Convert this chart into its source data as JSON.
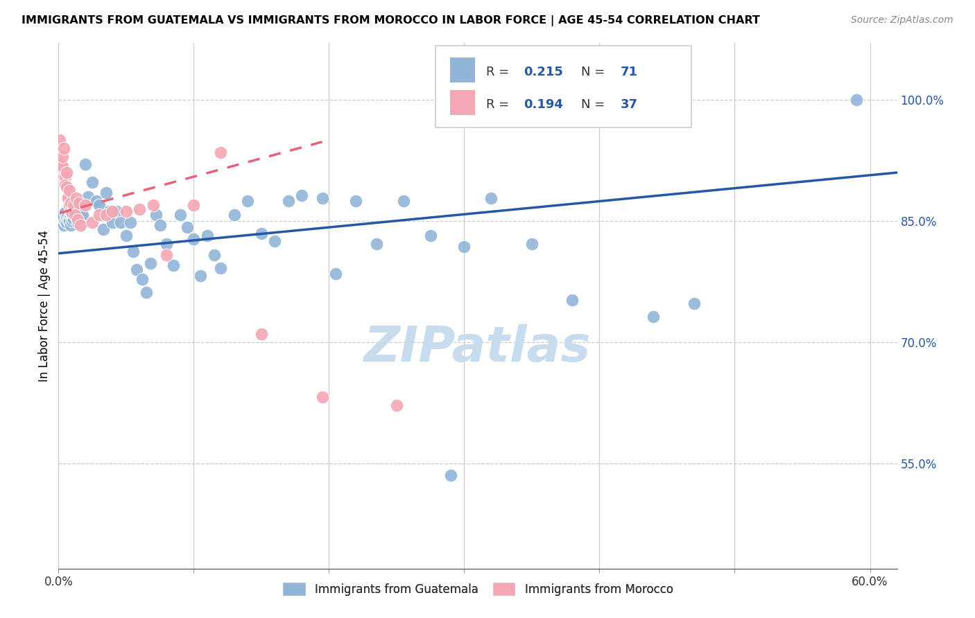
{
  "title": "IMMIGRANTS FROM GUATEMALA VS IMMIGRANTS FROM MOROCCO IN LABOR FORCE | AGE 45-54 CORRELATION CHART",
  "source": "Source: ZipAtlas.com",
  "ylabel": "In Labor Force | Age 45-54",
  "xlim": [
    0.0,
    0.62
  ],
  "ylim": [
    0.42,
    1.07
  ],
  "x_ticks": [
    0.0,
    0.1,
    0.2,
    0.3,
    0.4,
    0.5,
    0.6
  ],
  "x_tick_labels": [
    "0.0%",
    "",
    "",
    "",
    "",
    "",
    "60.0%"
  ],
  "y_ticks_right": [
    1.0,
    0.85,
    0.7,
    0.55
  ],
  "y_tick_labels_right": [
    "100.0%",
    "85.0%",
    "70.0%",
    "55.0%"
  ],
  "watermark": "ZIPatlas",
  "legend_R_blue": "0.215",
  "legend_N_blue": "71",
  "legend_R_pink": "0.194",
  "legend_N_pink": "37",
  "legend_label_blue": "Immigrants from Guatemala",
  "legend_label_pink": "Immigrants from Morocco",
  "blue_color": "#92B4D8",
  "pink_color": "#F4A7B4",
  "line_blue_color": "#2457A4",
  "line_pink_color": "#E8637A",
  "text_blue_color": "#2457A4",
  "grid_color": "#CCCCCC",
  "blue_x": [
    0.002,
    0.003,
    0.004,
    0.005,
    0.005,
    0.006,
    0.006,
    0.007,
    0.007,
    0.008,
    0.008,
    0.009,
    0.009,
    0.01,
    0.01,
    0.011,
    0.012,
    0.013,
    0.014,
    0.015,
    0.016,
    0.018,
    0.02,
    0.022,
    0.025,
    0.028,
    0.03,
    0.033,
    0.035,
    0.038,
    0.04,
    0.043,
    0.046,
    0.05,
    0.053,
    0.055,
    0.058,
    0.062,
    0.065,
    0.068,
    0.072,
    0.075,
    0.08,
    0.085,
    0.09,
    0.095,
    0.1,
    0.105,
    0.11,
    0.115,
    0.12,
    0.13,
    0.14,
    0.15,
    0.16,
    0.17,
    0.18,
    0.195,
    0.205,
    0.22,
    0.235,
    0.255,
    0.275,
    0.3,
    0.32,
    0.35,
    0.38,
    0.44,
    0.47,
    0.59,
    0.29
  ],
  "blue_y": [
    0.854,
    0.858,
    0.845,
    0.85,
    0.86,
    0.848,
    0.855,
    0.852,
    0.858,
    0.854,
    0.85,
    0.857,
    0.845,
    0.855,
    0.85,
    0.853,
    0.86,
    0.855,
    0.848,
    0.853,
    0.857,
    0.858,
    0.92,
    0.88,
    0.898,
    0.875,
    0.87,
    0.84,
    0.885,
    0.862,
    0.848,
    0.862,
    0.848,
    0.832,
    0.848,
    0.812,
    0.79,
    0.778,
    0.762,
    0.798,
    0.858,
    0.845,
    0.822,
    0.795,
    0.858,
    0.842,
    0.828,
    0.782,
    0.832,
    0.808,
    0.792,
    0.858,
    0.875,
    0.835,
    0.825,
    0.875,
    0.882,
    0.878,
    0.785,
    0.875,
    0.822,
    0.875,
    0.832,
    0.818,
    0.878,
    0.822,
    0.752,
    0.732,
    0.748,
    1.0,
    0.535
  ],
  "pink_x": [
    0.001,
    0.002,
    0.003,
    0.003,
    0.004,
    0.004,
    0.005,
    0.005,
    0.006,
    0.006,
    0.007,
    0.007,
    0.008,
    0.008,
    0.009,
    0.009,
    0.01,
    0.011,
    0.012,
    0.013,
    0.014,
    0.015,
    0.016,
    0.02,
    0.025,
    0.03,
    0.035,
    0.04,
    0.05,
    0.06,
    0.07,
    0.08,
    0.1,
    0.12,
    0.15,
    0.195,
    0.25
  ],
  "pink_y": [
    0.95,
    0.92,
    0.918,
    0.93,
    0.94,
    0.905,
    0.905,
    0.895,
    0.91,
    0.892,
    0.88,
    0.878,
    0.87,
    0.888,
    0.862,
    0.872,
    0.86,
    0.87,
    0.858,
    0.878,
    0.852,
    0.872,
    0.845,
    0.87,
    0.848,
    0.858,
    0.858,
    0.862,
    0.862,
    0.865,
    0.87,
    0.808,
    0.87,
    0.935,
    0.71,
    0.632,
    0.622
  ],
  "blue_line_x0": 0.0,
  "blue_line_x1": 0.62,
  "blue_line_y0": 0.81,
  "blue_line_y1": 0.91,
  "pink_line_x0": 0.001,
  "pink_line_x1": 0.195,
  "pink_line_y0": 0.86,
  "pink_line_y1": 0.948
}
